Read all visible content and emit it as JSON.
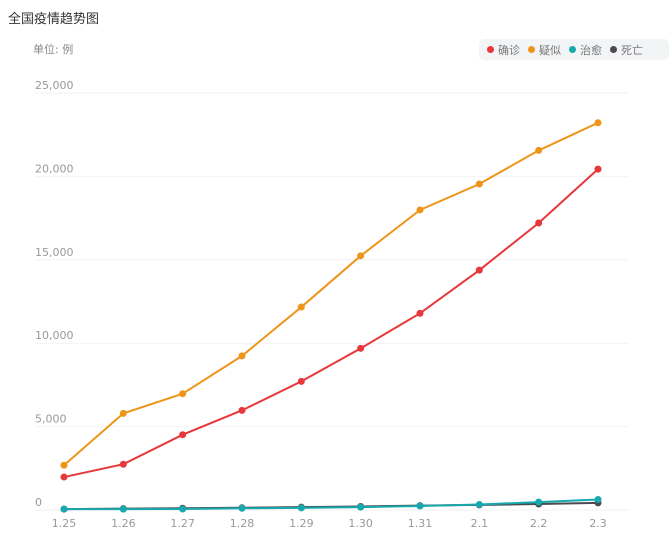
{
  "title": "全国疫情趋势图",
  "unit": "单位: 例",
  "chart_data": {
    "type": "line",
    "categories": [
      "1.25",
      "1.26",
      "1.27",
      "1.28",
      "1.29",
      "1.30",
      "1.31",
      "2.1",
      "2.2",
      "2.3"
    ],
    "ylim": [
      0,
      25000
    ],
    "yticks": [
      0,
      5000,
      10000,
      15000,
      20000,
      25000
    ],
    "ytick_labels": [
      "0",
      "5,000",
      "10,000",
      "15,000",
      "20,000",
      "25,000"
    ],
    "grid": true,
    "legend": "top-right",
    "series": [
      {
        "name": "确诊",
        "color": "#e8373a",
        "values": [
          1975,
          2744,
          4515,
          5974,
          7711,
          9692,
          11791,
          14380,
          17205,
          20438
        ]
      },
      {
        "name": "疑似",
        "color": "#ee9519",
        "values": [
          2684,
          5794,
          6973,
          9239,
          12167,
          15238,
          17988,
          19544,
          21558,
          23214
        ]
      },
      {
        "name": "治愈",
        "color": "#17a9ae",
        "values": [
          49,
          51,
          60,
          103,
          124,
          171,
          243,
          328,
          475,
          632
        ]
      },
      {
        "name": "死亡",
        "color": "#4a4a50",
        "values": [
          56,
          80,
          106,
          132,
          170,
          213,
          259,
          304,
          361,
          425
        ]
      }
    ]
  }
}
